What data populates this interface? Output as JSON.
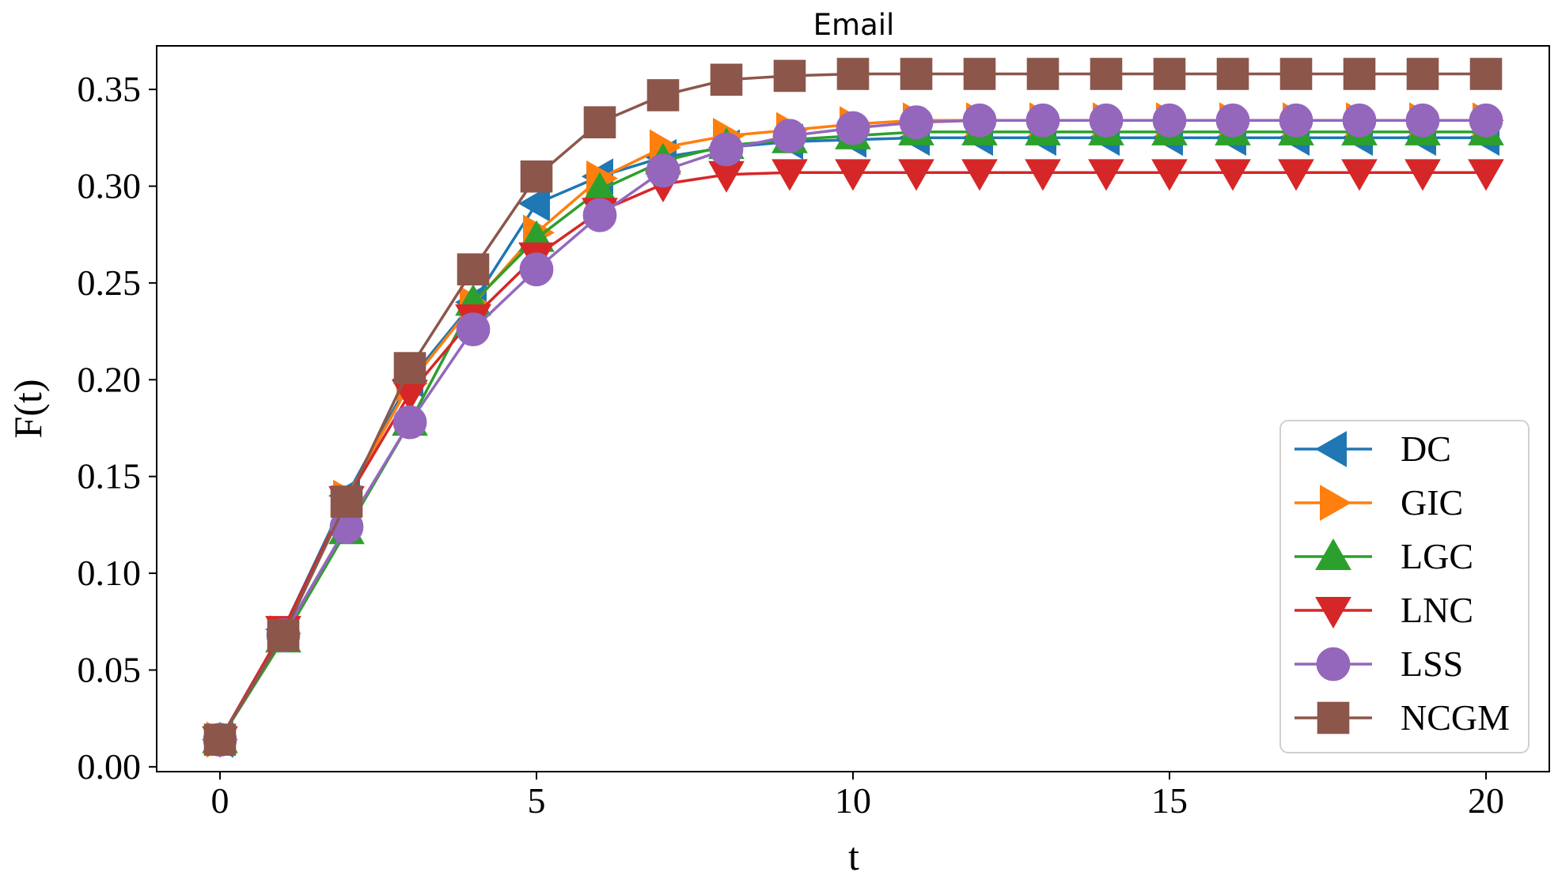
{
  "chart_data": {
    "type": "line",
    "title": "Email",
    "xlabel": "t",
    "ylabel": "F(t)",
    "xlim": [
      -1,
      21
    ],
    "ylim": [
      -0.0025,
      0.3725
    ],
    "xticks": [
      0,
      5,
      10,
      15,
      20
    ],
    "xtick_labels": [
      "0",
      "5",
      "10",
      "15",
      "20"
    ],
    "yticks": [
      0,
      0.05,
      0.1,
      0.15,
      0.2,
      0.25,
      0.3,
      0.35
    ],
    "ytick_labels": [
      "0.00",
      "0.05",
      "0.10",
      "0.15",
      "0.20",
      "0.25",
      "0.30",
      "0.35"
    ],
    "grid": false,
    "legend_position": "bottom-right",
    "x": [
      0,
      1,
      2,
      3,
      4,
      5,
      6,
      7,
      8,
      9,
      10,
      11,
      12,
      13,
      14,
      15,
      16,
      17,
      18,
      19,
      20
    ],
    "series": [
      {
        "name": "DC",
        "marker": "triangle-left",
        "color": "#1f77b4",
        "values": [
          0.014,
          0.071,
          0.14,
          0.2,
          0.24,
          0.291,
          0.305,
          0.315,
          0.32,
          0.323,
          0.324,
          0.325,
          0.325,
          0.325,
          0.325,
          0.325,
          0.325,
          0.325,
          0.325,
          0.325,
          0.325
        ]
      },
      {
        "name": "GIC",
        "marker": "triangle-right",
        "color": "#ff7f0e",
        "values": [
          0.014,
          0.069,
          0.139,
          0.198,
          0.239,
          0.276,
          0.304,
          0.32,
          0.326,
          0.329,
          0.332,
          0.334,
          0.334,
          0.334,
          0.334,
          0.334,
          0.334,
          0.334,
          0.334,
          0.334,
          0.334
        ]
      },
      {
        "name": "LGC",
        "marker": "triangle-up",
        "color": "#2ca02c",
        "values": [
          0.014,
          0.066,
          0.122,
          0.178,
          0.24,
          0.273,
          0.298,
          0.313,
          0.321,
          0.324,
          0.326,
          0.328,
          0.328,
          0.328,
          0.328,
          0.328,
          0.328,
          0.328,
          0.328,
          0.328,
          0.328
        ]
      },
      {
        "name": "LNC",
        "marker": "triangle-down",
        "color": "#d62728",
        "values": [
          0.014,
          0.071,
          0.138,
          0.193,
          0.232,
          0.264,
          0.287,
          0.301,
          0.306,
          0.307,
          0.307,
          0.307,
          0.307,
          0.307,
          0.307,
          0.307,
          0.307,
          0.307,
          0.307,
          0.307,
          0.307
        ]
      },
      {
        "name": "LSS",
        "marker": "circle",
        "color": "#9467bd",
        "values": [
          0.014,
          0.068,
          0.124,
          0.178,
          0.226,
          0.257,
          0.285,
          0.308,
          0.319,
          0.326,
          0.33,
          0.333,
          0.334,
          0.334,
          0.334,
          0.334,
          0.334,
          0.334,
          0.334,
          0.334,
          0.334
        ]
      },
      {
        "name": "NCGM",
        "marker": "square",
        "color": "#8c564b",
        "values": [
          0.014,
          0.068,
          0.137,
          0.206,
          0.257,
          0.305,
          0.333,
          0.347,
          0.355,
          0.357,
          0.358,
          0.358,
          0.358,
          0.358,
          0.358,
          0.358,
          0.358,
          0.358,
          0.358,
          0.358,
          0.358
        ]
      }
    ]
  }
}
